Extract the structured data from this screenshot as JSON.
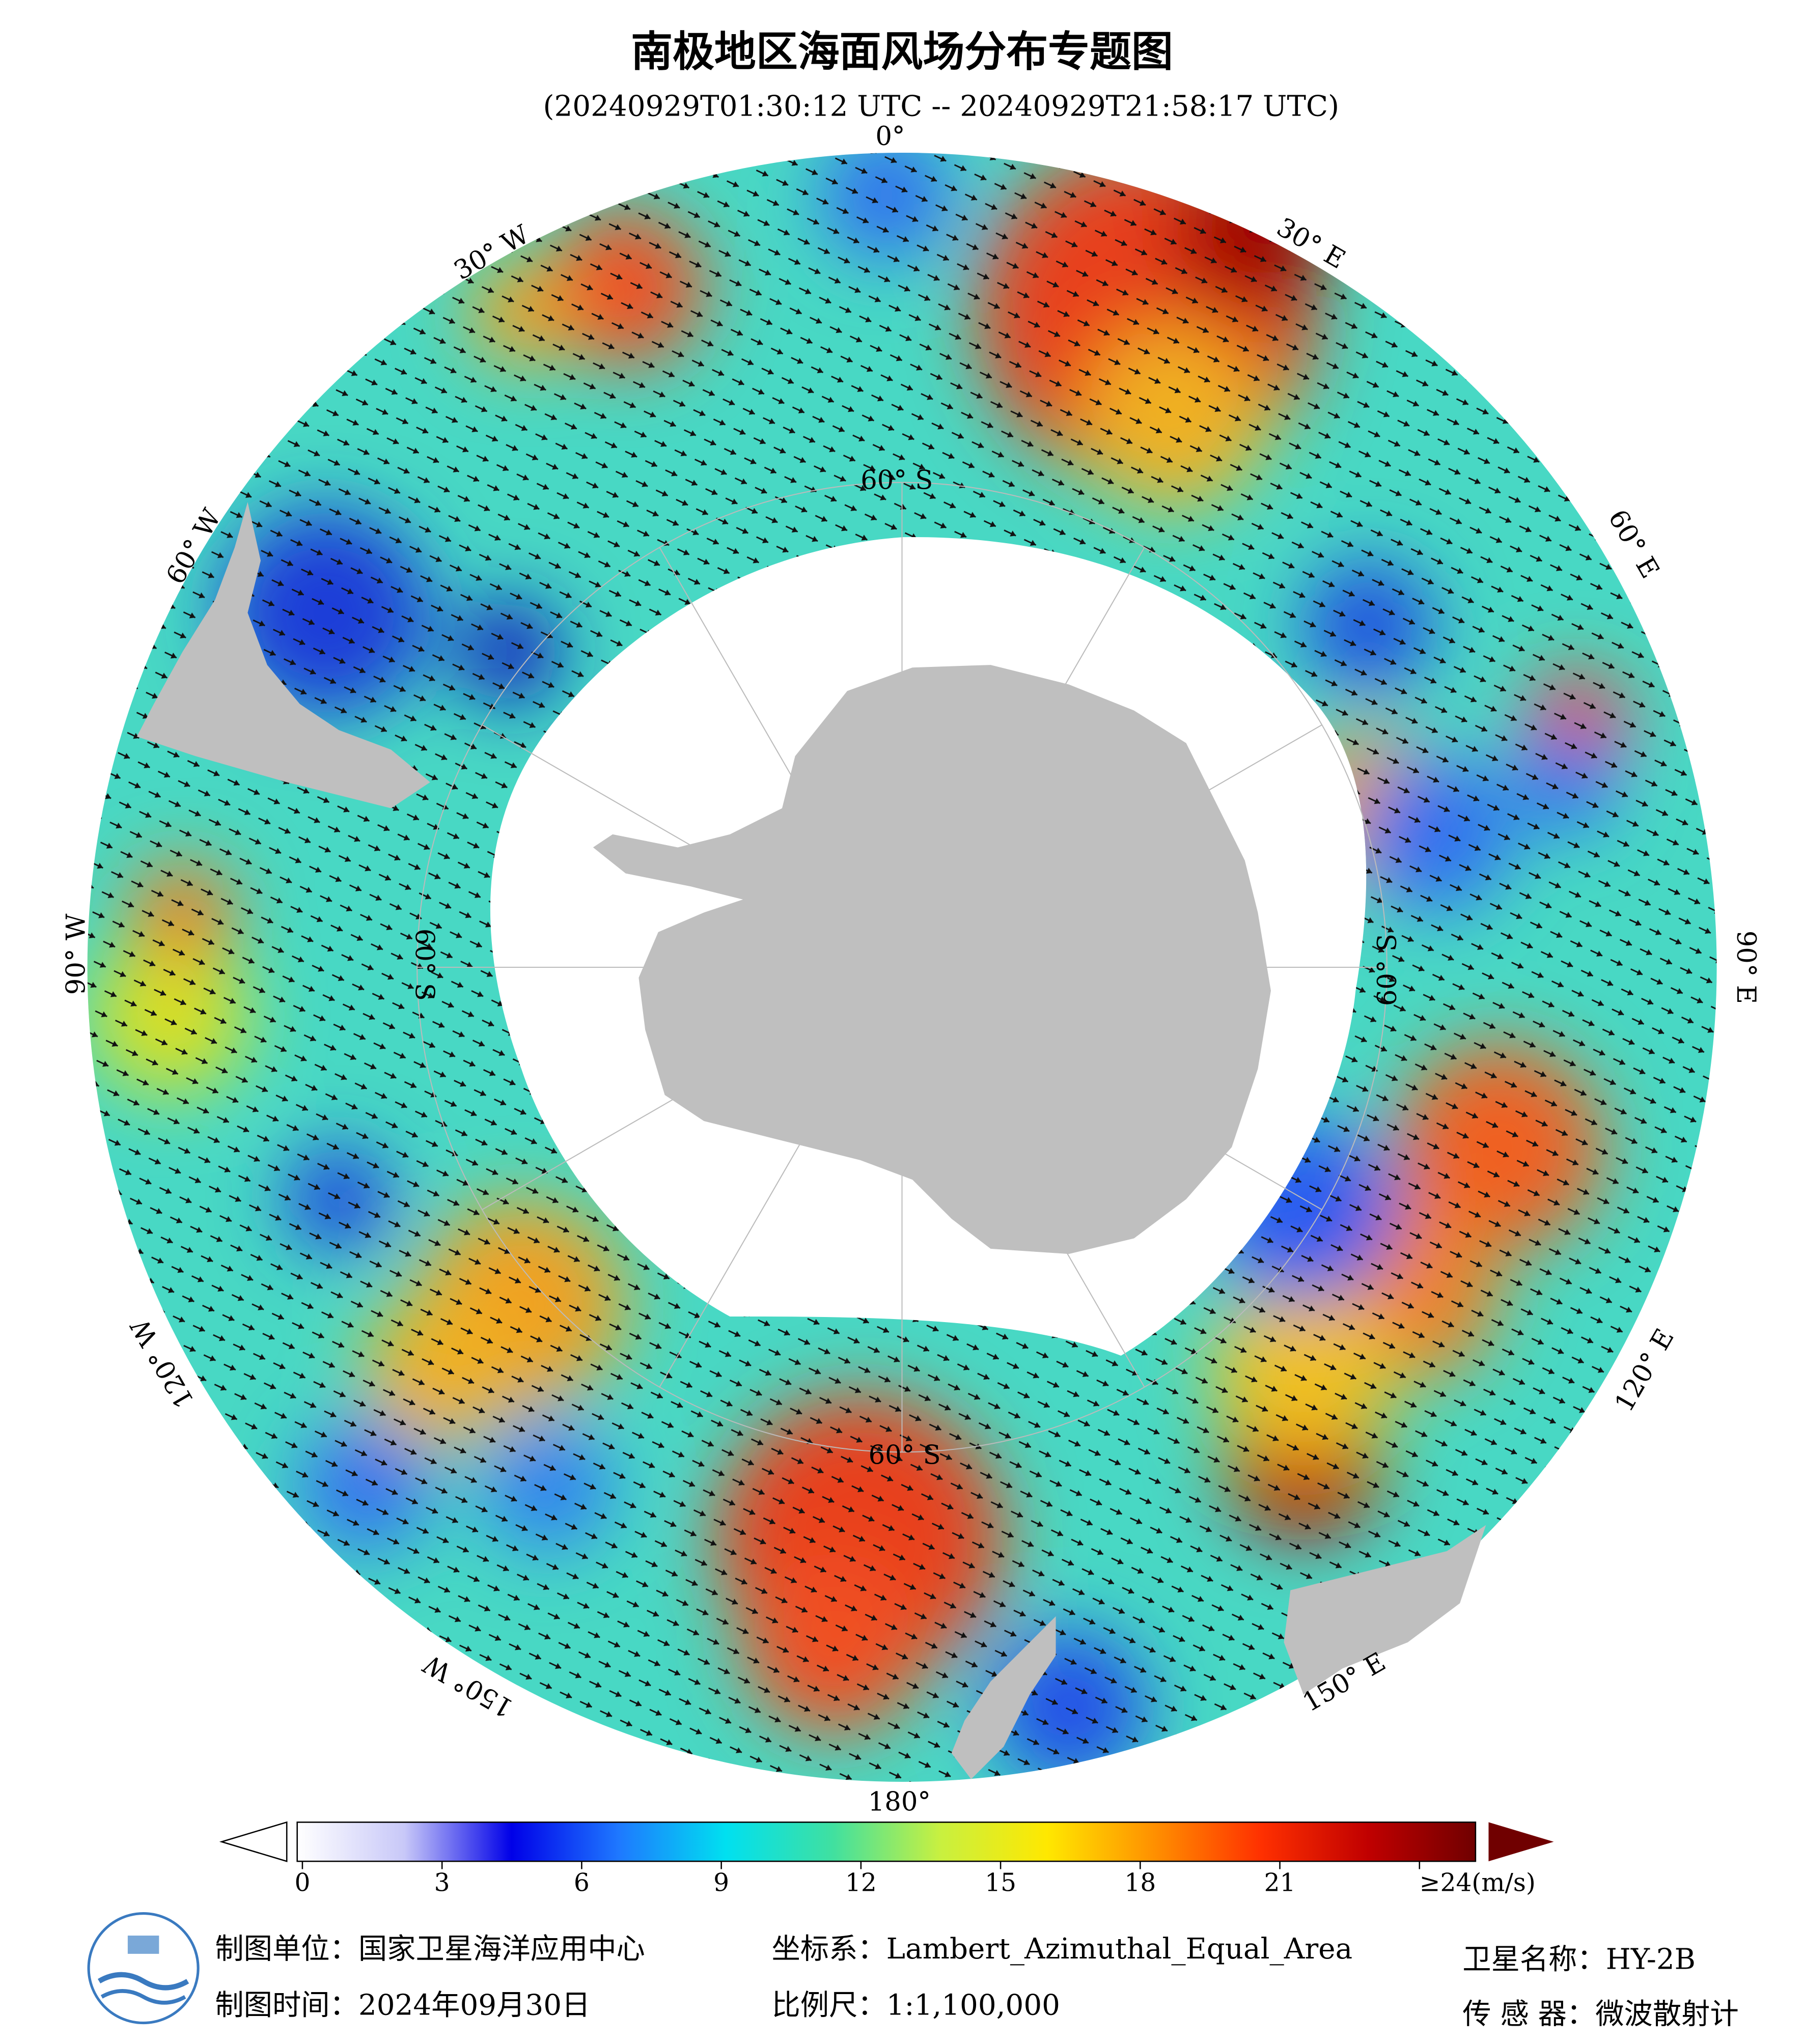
{
  "title": "南极地区海面风场分布专题图",
  "subtitle": "(20240929T01:30:12 UTC -- 20240929T21:58:17 UTC)",
  "graticule": {
    "longitude_labels": [
      "0°",
      "30° E",
      "60° E",
      "90° E",
      "120° E",
      "150° E",
      "180°",
      "150° W",
      "120° W",
      "90° W",
      "60° W",
      "30° W"
    ],
    "latitude_labels": [
      "60° S",
      "60° S",
      "60° S",
      "60° S"
    ]
  },
  "colorbar": {
    "range": [
      0,
      24
    ],
    "ticks": [
      0,
      3,
      6,
      9,
      12,
      15,
      18,
      21,
      {
        "value": 24,
        "label": "≥24(m/s)"
      }
    ],
    "colors": [
      "#ffffff",
      "#c8c8f8",
      "#0000e8",
      "#1e78ff",
      "#00e0f0",
      "#40e0a0",
      "#c8f040",
      "#ffe800",
      "#ff9000",
      "#ff3000",
      "#c00000",
      "#700000"
    ]
  },
  "info": {
    "producer": "制图单位：国家卫星海洋应用中心",
    "date": "制图时间：2024年09月30日",
    "projection": "坐标系：Lambert_Azimuthal_Equal_Area",
    "scale": "比例尺：1:1,100,000",
    "satellite": "卫星名称：HY-2B",
    "sensor": "传 感 器：微波散射计"
  }
}
